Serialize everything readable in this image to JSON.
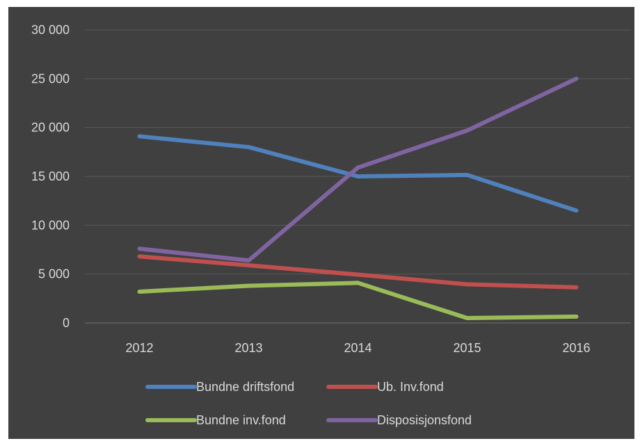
{
  "chart_data": {
    "type": "line",
    "x": [
      "2012",
      "2013",
      "2014",
      "2015",
      "2016"
    ],
    "ylim": [
      0,
      30000
    ],
    "yticks": [
      0,
      5000,
      10000,
      15000,
      20000,
      25000,
      30000
    ],
    "ytick_labels": [
      "0",
      "5 000",
      "10 000",
      "15 000",
      "20 000",
      "25 000",
      "30 000"
    ],
    "grid": true,
    "legend_placement": "bottom",
    "background_color": "#404040",
    "series": [
      {
        "name": "Bundne driftsfond",
        "color": "#4f81bd",
        "values": [
          19100,
          18000,
          15000,
          15150,
          11500
        ]
      },
      {
        "name": "Ub. Inv.fond",
        "color": "#c0504d",
        "values": [
          6800,
          5900,
          4950,
          3950,
          3650
        ]
      },
      {
        "name": "Bundne inv.fond",
        "color": "#9bbb59",
        "values": [
          3200,
          3800,
          4100,
          500,
          650
        ]
      },
      {
        "name": "Disposisjonsfond",
        "color": "#8064a2",
        "values": [
          7600,
          6400,
          15900,
          19700,
          25000
        ]
      }
    ]
  }
}
